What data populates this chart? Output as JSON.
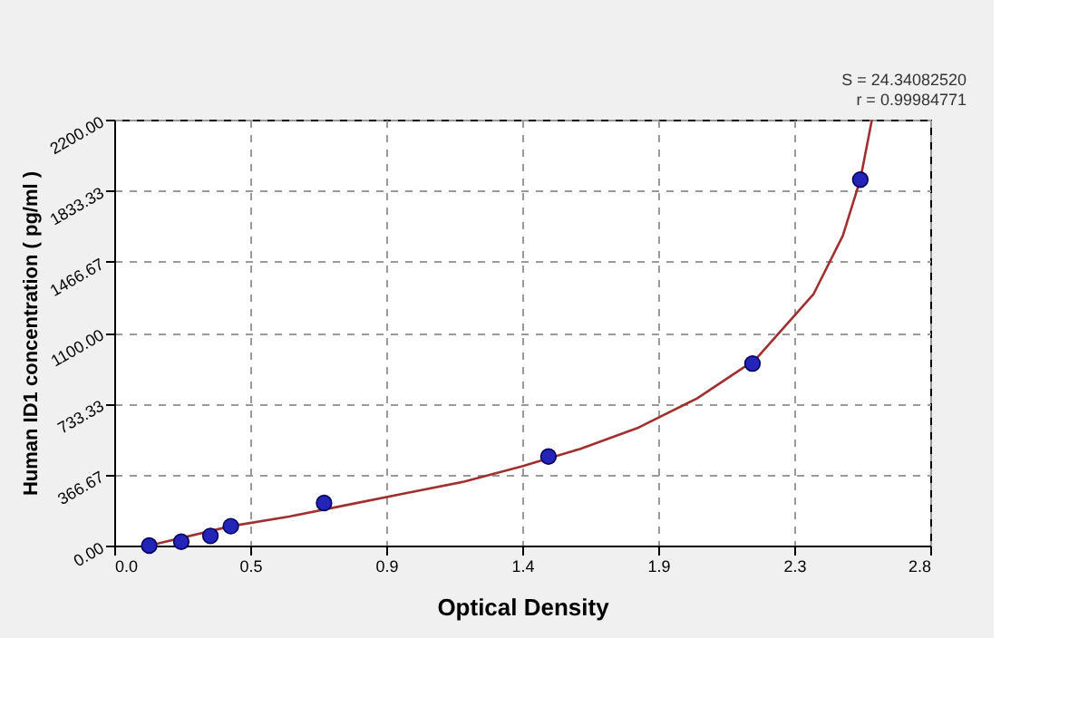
{
  "chart_data": {
    "type": "scatter",
    "xlabel": "Optical Density",
    "ylabel": "Human ID1 concentration ( pg/ml )",
    "annotations": [
      "S = 24.34082520",
      "r = 0.99984771"
    ],
    "xlim": [
      0,
      2.8
    ],
    "ylim": [
      0,
      2200
    ],
    "xticks": [
      {
        "value": 0,
        "label": "0.0"
      },
      {
        "value": 0.4667,
        "label": "0.5"
      },
      {
        "value": 0.9333,
        "label": "0.9"
      },
      {
        "value": 1.4,
        "label": "1.4"
      },
      {
        "value": 1.8667,
        "label": "1.9"
      },
      {
        "value": 2.3333,
        "label": "2.3"
      },
      {
        "value": 2.8,
        "label": "2.8"
      }
    ],
    "yticks": [
      {
        "value": 0,
        "label": "0.00"
      },
      {
        "value": 366.67,
        "label": "366.67"
      },
      {
        "value": 733.33,
        "label": "733.33"
      },
      {
        "value": 1100,
        "label": "1100.00"
      },
      {
        "value": 1466.67,
        "label": "1466.67"
      },
      {
        "value": 1833.33,
        "label": "1833.33"
      },
      {
        "value": 2200,
        "label": "2200.00"
      }
    ],
    "grid": true,
    "series": [
      {
        "type": "line",
        "color": "#a03030",
        "line_style": "solid",
        "marker": "none",
        "x": [
          0.12,
          0.4,
          0.6,
          0.8,
          1.0,
          1.2,
          1.4,
          1.6,
          1.8,
          2.0,
          2.2,
          2.4,
          2.5,
          2.56,
          2.6
        ],
        "values": [
          0,
          100,
          150,
          210,
          270,
          330,
          410,
          500,
          610,
          760,
          960,
          1300,
          1600,
          1890,
          2200
        ]
      },
      {
        "color": "#2424b8",
        "marker": "circle",
        "x": [
          0.12,
          0.23,
          0.33,
          0.4,
          0.72,
          1.49,
          2.19,
          2.56
        ],
        "values": [
          0,
          20,
          50,
          100,
          220,
          460,
          940,
          1890
        ]
      }
    ]
  }
}
